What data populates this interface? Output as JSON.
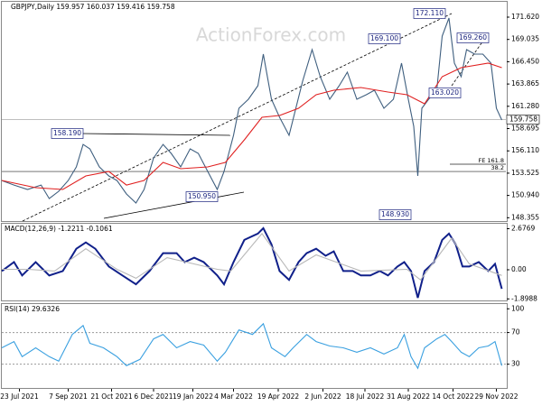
{
  "chart_data": [
    {
      "type": "line",
      "title": "GBPJPY,Daily  159.957 160.037 159.416 159.758",
      "watermark": "ActionForex.com",
      "xlim": [
        0,
        372
      ],
      "ylim": [
        147.97,
        173.4
      ],
      "yticks": [
        {
          "value": 171.62,
          "label": "171.620"
        },
        {
          "value": 169.035,
          "label": "169.035"
        },
        {
          "value": 166.45,
          "label": "166.450"
        },
        {
          "value": 163.865,
          "label": "163.865"
        },
        {
          "value": 161.28,
          "label": "161.280"
        },
        {
          "value": 158.695,
          "label": "158.695"
        },
        {
          "value": 156.11,
          "label": "156.110"
        },
        {
          "value": 153.525,
          "label": "153.525"
        },
        {
          "value": 150.94,
          "label": "150.940"
        },
        {
          "value": 148.355,
          "label": "148.355"
        }
      ],
      "current_price": {
        "value": 159.758,
        "label": "159.758"
      },
      "levels": [
        {
          "label": "FE 161.8",
          "value": 154.56
        },
        {
          "label": "38.2",
          "value": 153.72
        }
      ],
      "annotations": [
        "172.110",
        "169.100",
        "169.260",
        "163.020",
        "158.190",
        "150.950",
        "148.930"
      ],
      "series": [
        {
          "name": "GBPJPY",
          "color": "#3f5f7f",
          "x": [
            0,
            9,
            19,
            29,
            35,
            42,
            49,
            55,
            60,
            65,
            72,
            79,
            85,
            92,
            99,
            105,
            112,
            119,
            125,
            132,
            139,
            145,
            152,
            159,
            164,
            171,
            175,
            182,
            189,
            193,
            199,
            205,
            212,
            217,
            222,
            229,
            235,
            242,
            249,
            255,
            262,
            269,
            275,
            282,
            289,
            295,
            300,
            304,
            307,
            310,
            315,
            321,
            325,
            330,
            334,
            339,
            343,
            349,
            355,
            361,
            365,
            369
          ],
          "values": [
            152.67,
            152.15,
            151.63,
            152.15,
            150.58,
            151.42,
            152.67,
            154.25,
            156.86,
            156.34,
            154.25,
            153.2,
            152.67,
            151.11,
            150.06,
            151.63,
            155.29,
            156.86,
            155.82,
            154.25,
            156.34,
            155.82,
            153.72,
            151.63,
            153.72,
            157.91,
            161.05,
            162.1,
            163.67,
            167.33,
            162.1,
            160.0,
            157.91,
            161.05,
            164.19,
            167.85,
            164.71,
            162.1,
            163.67,
            165.24,
            162.1,
            162.62,
            163.14,
            161.05,
            162.1,
            166.28,
            162.1,
            158.96,
            153.2,
            161.05,
            162.1,
            163.14,
            169.42,
            171.52,
            166.28,
            164.71,
            167.85,
            167.33,
            167.33,
            166.28,
            161.05,
            159.69
          ]
        },
        {
          "name": "MA",
          "color": "#e02020",
          "x": [
            0,
            25,
            45,
            62,
            79,
            92,
            105,
            119,
            132,
            152,
            165,
            179,
            192,
            205,
            219,
            232,
            245,
            265,
            285,
            299,
            312,
            325,
            339,
            359,
            369
          ],
          "values": [
            152.68,
            151.84,
            151.63,
            153.2,
            153.72,
            152.15,
            152.68,
            154.77,
            154.04,
            154.25,
            154.77,
            157.39,
            160.0,
            160.21,
            161.05,
            162.62,
            163.14,
            163.46,
            162.94,
            162.62,
            161.57,
            164.71,
            165.76,
            166.28,
            165.76
          ]
        }
      ]
    },
    {
      "type": "line",
      "title": "MACD(12,26,9) -1.2211 -0.1061",
      "xlim": [
        0,
        372
      ],
      "ylim": [
        -2.0,
        3.0
      ],
      "yticks": [
        2.6769,
        {
          "value": 0,
          "label": "0.00"
        },
        -1.8988
      ],
      "series": [
        {
          "name": "MACD",
          "color": "#10208a",
          "x": [
            0,
            9,
            15,
            25,
            35,
            45,
            55,
            62,
            69,
            79,
            89,
            99,
            109,
            119,
            129,
            135,
            142,
            149,
            159,
            164,
            171,
            179,
            189,
            193,
            199,
            205,
            212,
            219,
            225,
            232,
            239,
            245,
            252,
            259,
            265,
            272,
            279,
            285,
            292,
            297,
            302,
            307,
            312,
            319,
            325,
            330,
            335,
            340,
            345,
            352,
            359,
            364,
            369
          ],
          "values": [
            -0.08,
            0.5,
            -0.37,
            0.5,
            -0.37,
            -0.08,
            1.37,
            1.78,
            1.37,
            0.21,
            -0.37,
            -0.95,
            -0.08,
            1.08,
            1.08,
            0.5,
            0.79,
            0.5,
            -0.37,
            -0.95,
            0.5,
            1.95,
            2.36,
            2.71,
            1.66,
            -0.08,
            -0.66,
            0.5,
            1.08,
            1.37,
            0.91,
            1.2,
            -0.08,
            -0.08,
            -0.37,
            -0.37,
            -0.08,
            -0.37,
            0.21,
            0.5,
            -0.08,
            -1.83,
            -0.08,
            0.5,
            1.95,
            2.36,
            1.66,
            0.21,
            0.21,
            0.5,
            -0.08,
            0.38,
            -1.24
          ]
        },
        {
          "name": "Signal",
          "color": "#b8b8b8",
          "x": [
            0,
            19,
            39,
            62,
            85,
            99,
            122,
            159,
            169,
            192,
            212,
            232,
            265,
            299,
            309,
            332,
            345,
            369
          ],
          "values": [
            0.03,
            0.03,
            -0.08,
            1.37,
            0.03,
            -0.55,
            0.79,
            0.03,
            -0.08,
            2.36,
            -0.08,
            0.97,
            -0.08,
            0.03,
            -0.66,
            2.06,
            0.38,
            -0.37
          ]
        }
      ]
    },
    {
      "type": "line",
      "title": "RSI(14) 29.6326",
      "xlim": [
        0,
        372
      ],
      "ylim": [
        0,
        106
      ],
      "yticks": [
        100,
        70,
        30
      ],
      "levels": [
        70,
        30
      ],
      "xticks": [
        {
          "value": 13,
          "label": "23 Jul 2021"
        },
        {
          "value": 49,
          "label": "7 Sep 2021"
        },
        {
          "value": 81,
          "label": "21 Oct 2021"
        },
        {
          "value": 112,
          "label": "6 Dec 2021"
        },
        {
          "value": 141,
          "label": "19 Jan 2022"
        },
        {
          "value": 171,
          "label": "4 Mar 2022"
        },
        {
          "value": 204,
          "label": "19 Apr 2022"
        },
        {
          "value": 237,
          "label": "2 Jun 2022"
        },
        {
          "value": 268,
          "label": "18 Jul 2022"
        },
        {
          "value": 300,
          "label": "31 Aug 2022"
        },
        {
          "value": 333,
          "label": "14 Oct 2022"
        },
        {
          "value": 365,
          "label": "29 Nov 2022"
        }
      ],
      "series": [
        {
          "name": "RSI",
          "color": "#3aa0e0",
          "x": [
            0,
            9,
            15,
            25,
            35,
            42,
            52,
            60,
            65,
            75,
            85,
            92,
            102,
            112,
            119,
            129,
            139,
            149,
            159,
            165,
            175,
            185,
            193,
            199,
            209,
            215,
            225,
            232,
            242,
            252,
            262,
            272,
            282,
            292,
            297,
            302,
            307,
            312,
            321,
            327,
            332,
            339,
            345,
            352,
            359,
            364,
            369
          ],
          "values": [
            50.7,
            58.6,
            39.5,
            50.7,
            39.5,
            33.8,
            67.6,
            78.9,
            56.4,
            50.7,
            39.5,
            28.2,
            36.1,
            62.0,
            67.6,
            50.7,
            58.6,
            54.1,
            33.8,
            45.1,
            73.3,
            67.6,
            81.2,
            50.7,
            39.5,
            50.7,
            67.6,
            58.6,
            53.0,
            50.7,
            45.1,
            50.7,
            42.8,
            50.7,
            67.6,
            39.5,
            24.8,
            50.7,
            62.0,
            67.6,
            58.6,
            45.1,
            39.5,
            50.7,
            53.0,
            58.6,
            28.2
          ]
        }
      ]
    }
  ]
}
